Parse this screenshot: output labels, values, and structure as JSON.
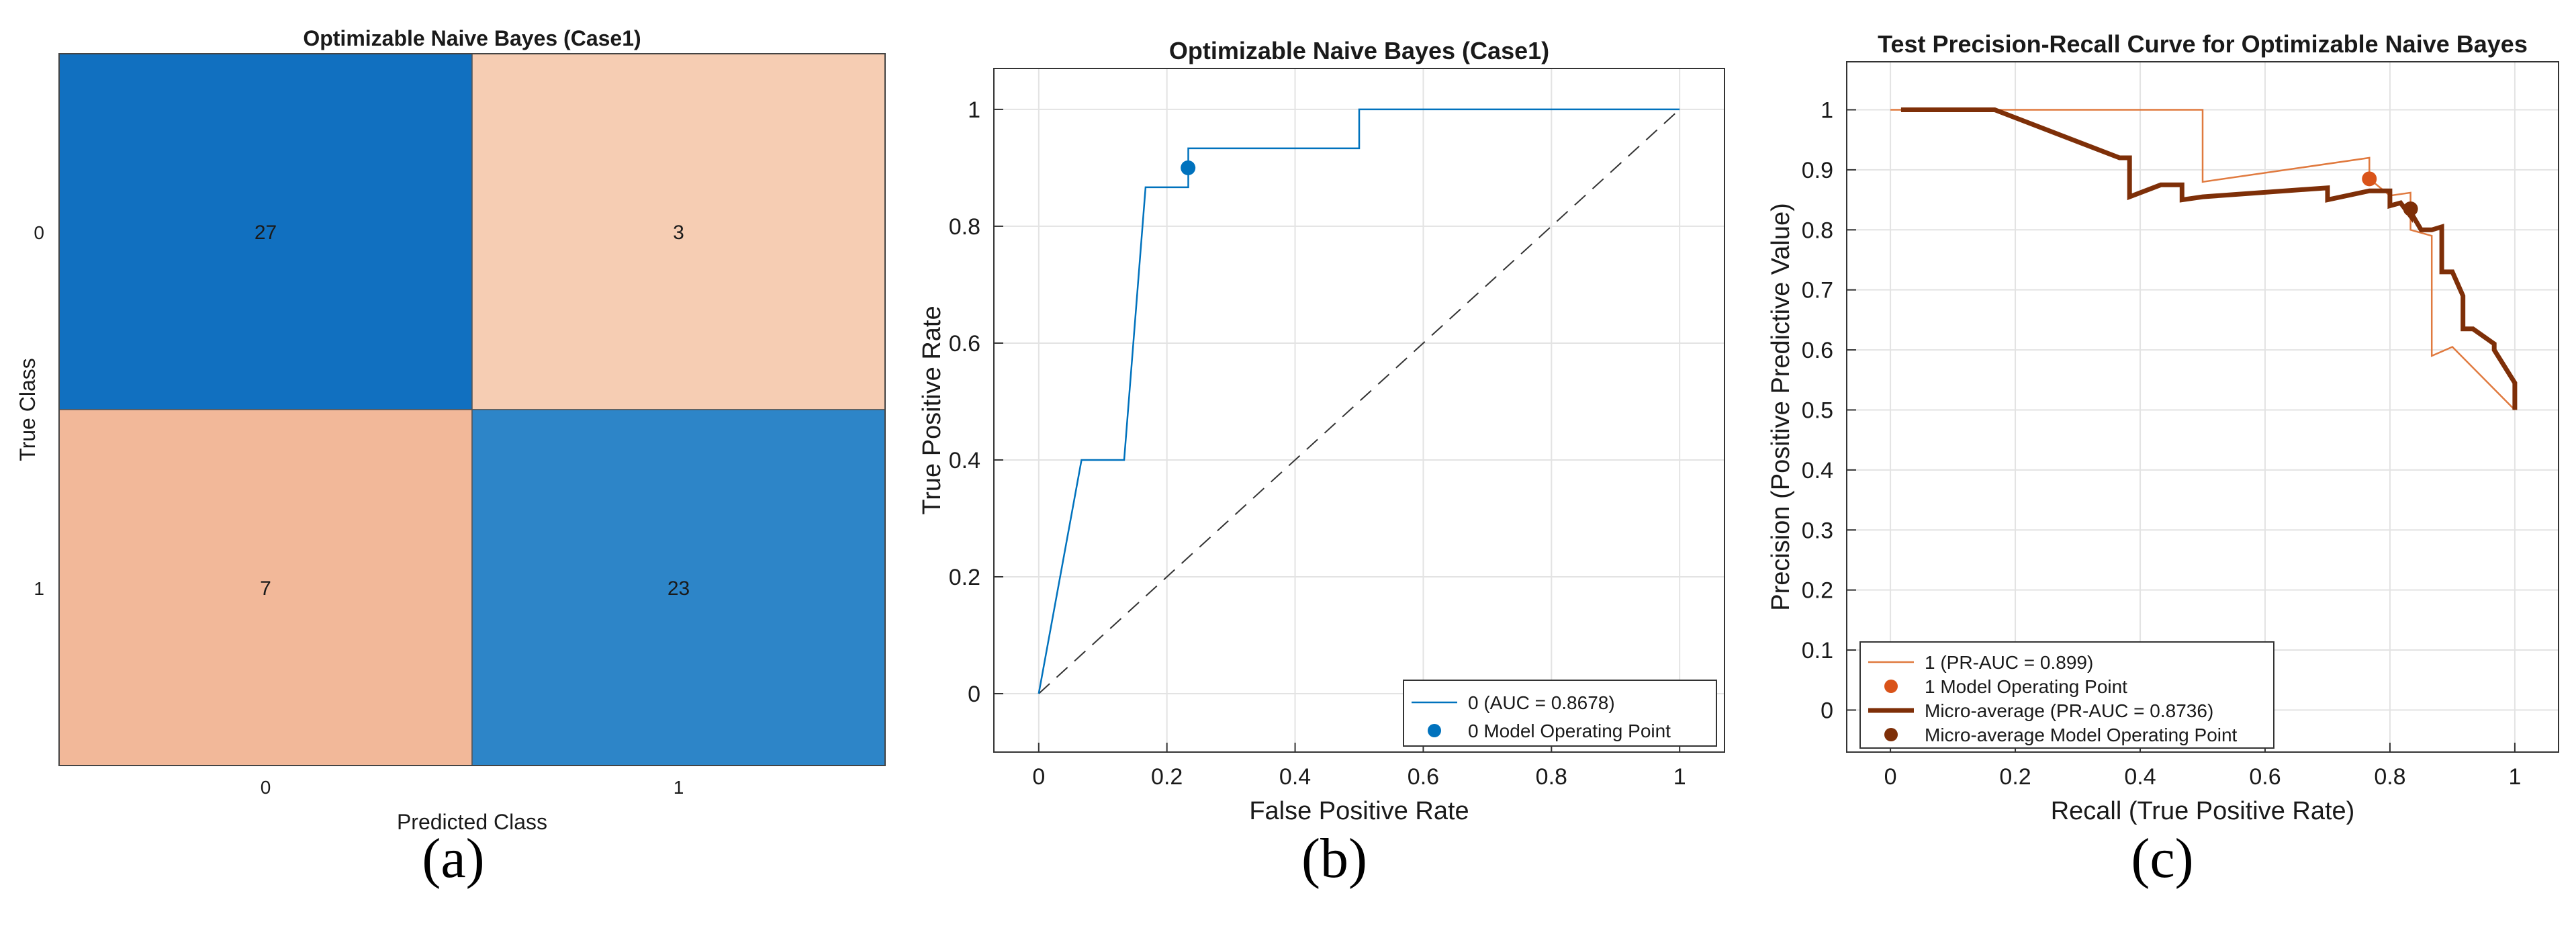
{
  "captions": {
    "a": "(a)",
    "b": "(b)",
    "c": "(c)"
  },
  "chart_data": [
    {
      "id": "a",
      "type": "heatmap",
      "title": "Optimizable Naive Bayes (Case1)",
      "xlabel": "Predicted Class",
      "ylabel": "True Class",
      "row_labels": [
        "0",
        "1"
      ],
      "col_labels": [
        "0",
        "1"
      ],
      "values": [
        [
          27,
          3
        ],
        [
          7,
          23
        ]
      ],
      "cell_colors": [
        [
          "#1170C0",
          "#F6CDB3"
        ],
        [
          "#F2B899",
          "#2D85C8"
        ]
      ]
    },
    {
      "id": "b",
      "type": "line",
      "title": "Optimizable Naive Bayes (Case1)",
      "xlabel": "False Positive Rate",
      "ylabel": "True Positive Rate",
      "xlim": [
        -0.07,
        1.07
      ],
      "ylim": [
        -0.1,
        1.07
      ],
      "xticks": [
        "0",
        "0.2",
        "0.4",
        "0.6",
        "0.8",
        "1"
      ],
      "yticks": [
        "0",
        "0.2",
        "0.4",
        "0.6",
        "0.8",
        "1"
      ],
      "grid": true,
      "legend_position": "bottom-right",
      "series": [
        {
          "name": "0 (AUC = 0.8678)",
          "color": "#0072BD",
          "style": "step",
          "x": [
            0,
            0.0667,
            0.1333,
            0.1667,
            0.2333,
            0.2333,
            0.5,
            0.5,
            1
          ],
          "y": [
            0,
            0.4,
            0.4,
            0.8667,
            0.8667,
            0.9333,
            0.9333,
            1,
            1
          ]
        },
        {
          "name": "0 Model Operating Point",
          "color": "#0072BD",
          "style": "point",
          "x": [
            0.233
          ],
          "y": [
            0.9
          ]
        }
      ],
      "reference_line": {
        "x": [
          0,
          1
        ],
        "y": [
          0,
          1
        ],
        "color": "#333333"
      }
    },
    {
      "id": "c",
      "type": "line",
      "title": "Test Precision-Recall Curve for Optimizable Naive Bayes",
      "xlabel": "Recall (True Positive Rate)",
      "ylabel": "Precision (Positive Predictive Value)",
      "xlim": [
        -0.07,
        1.07
      ],
      "ylim": [
        -0.07,
        1.08
      ],
      "xticks": [
        "0",
        "0.2",
        "0.4",
        "0.6",
        "0.8",
        "1"
      ],
      "yticks": [
        "0",
        "0.1",
        "0.2",
        "0.3",
        "0.4",
        "0.5",
        "0.6",
        "0.7",
        "0.8",
        "0.9",
        "1"
      ],
      "grid": true,
      "legend_position": "bottom-left",
      "series": [
        {
          "name": "1 (PR-AUC = 0.899)",
          "color": "#E07A3F",
          "style": "thin",
          "x": [
            0.0,
            0.5,
            0.5,
            0.767,
            0.767,
            0.8,
            0.8,
            0.833,
            0.833,
            0.867,
            0.867,
            0.9,
            1.0,
            1.0
          ],
          "y": [
            1.0,
            1.0,
            0.88,
            0.92,
            0.885,
            0.857,
            0.857,
            0.862,
            0.8,
            0.79,
            0.59,
            0.605,
            0.5,
            0.5
          ]
        },
        {
          "name": "1 Model Operating Point",
          "color": "#D95319",
          "style": "point",
          "x": [
            0.767
          ],
          "y": [
            0.885
          ]
        },
        {
          "name": "Micro-average (PR-AUC = 0.8736)",
          "color": "#7E2F08",
          "style": "thick",
          "x": [
            0.017,
            0.167,
            0.367,
            0.383,
            0.383,
            0.433,
            0.467,
            0.467,
            0.5,
            0.7,
            0.7,
            0.767,
            0.8,
            0.8,
            0.817,
            0.833,
            0.833,
            0.85,
            0.867,
            0.883,
            0.883,
            0.9,
            0.917,
            0.917,
            0.933,
            0.967,
            0.967,
            1.0,
            1.0
          ],
          "y": [
            1.0,
            1.0,
            0.92,
            0.92,
            0.855,
            0.875,
            0.875,
            0.85,
            0.855,
            0.87,
            0.85,
            0.865,
            0.865,
            0.84,
            0.845,
            0.823,
            0.83,
            0.8,
            0.8,
            0.805,
            0.73,
            0.73,
            0.69,
            0.635,
            0.635,
            0.61,
            0.6,
            0.545,
            0.5
          ]
        },
        {
          "name": "Micro-average Model Operating Point",
          "color": "#7E2F08",
          "style": "point",
          "x": [
            0.833
          ],
          "y": [
            0.835
          ]
        }
      ]
    }
  ]
}
